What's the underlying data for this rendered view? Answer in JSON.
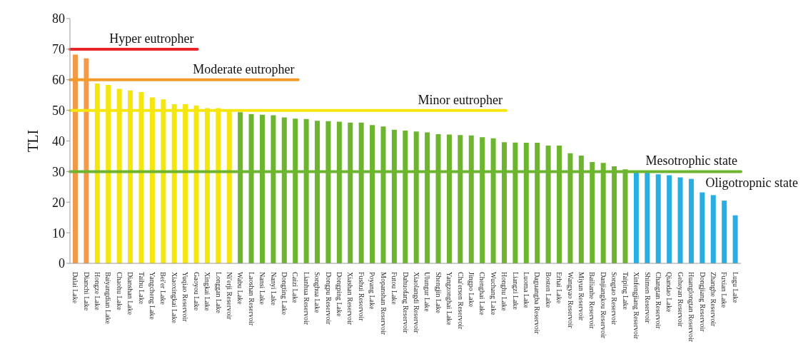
{
  "chart_data": {
    "type": "bar",
    "ylabel": "TLI",
    "categories": [
      "Dalai Lake",
      "Dianchi Lake",
      "Hongze Lake",
      "Baiyangdian Lake",
      "Chaohu Lake",
      "Dianshan Lake",
      "Taihu Lake",
      "Yangcheng Lake",
      "Bei'er Lake",
      "Xiaoxingkai Lake",
      "Yuqiao Reservoir",
      "Gaoyou Lake",
      "Xingkai Lake",
      "Longgan Lake",
      "Ni'erji Reservoir",
      "Wabu Lake",
      "Laoshan Reservoir",
      "Nansi Lake",
      "Nanyi Lake",
      "Dongting Lake",
      "Caizi Lake",
      "Lianhua Reservoir",
      "Songhua Lake",
      "Dongpu Reservoir",
      "Dongping Lake",
      "Xiashan Reservoir",
      "Fushui Reservoir",
      "Poyang Lake",
      "Mopanshan Reservoir",
      "Futou Lake",
      "Dahuofang Reservoir",
      "Xiaolangdi Reservoir",
      "Ulungur Lake",
      "Shengjin Lake",
      "Yangzonghai Lake",
      "Cha'ersen Reservoir",
      "Jingpo Lake",
      "Chenghai Lake",
      "Wuchang Lake",
      "Honghu Lake",
      "Liangzi Lake",
      "Luoma Lake",
      "Daguangba Reservoir",
      "Bosten Lake",
      "Erhai Lake",
      "Wangyao Reservoir",
      "Miyun Reservoir",
      "Bailianhe Reservoir",
      "Danjiangkou Reservoir",
      "Songtao Reservoir",
      "Taiping Lake",
      "Xinfengjiang Reservoir",
      "Shimen Reservoir",
      "Changtan Reservoir",
      "Qiandao Lake",
      "Geheyan Reservoir",
      "Huanglongtan Reservoir",
      "Dongjiang Reservoir",
      "Zhanghe Reservoir",
      "Fuxian Lake",
      "Lugu Lake"
    ],
    "values": [
      68.2,
      67,
      58.8,
      58.3,
      57,
      56.5,
      56,
      54.2,
      53.6,
      52,
      52,
      51.6,
      50.7,
      50.7,
      50.2,
      49.4,
      48.8,
      48.6,
      48.4,
      47.7,
      47.3,
      47.2,
      46.6,
      46.5,
      46.3,
      46,
      46,
      45.2,
      44.7,
      43.7,
      43.4,
      43.1,
      42.8,
      42.2,
      42.1,
      41.9,
      41.8,
      41.2,
      40.9,
      39.6,
      39.5,
      39.4,
      39.4,
      38.5,
      38.5,
      36,
      35.2,
      33.1,
      32.8,
      31.7,
      30.7,
      29.8,
      29.7,
      29.1,
      28.8,
      28.1,
      27.6,
      23.2,
      22.3,
      20.5,
      15.7
    ],
    "colors": [
      "#f39a4a",
      "#f39a4a",
      "#f5e60f",
      "#f5e60f",
      "#f5e60f",
      "#f5e60f",
      "#f5e60f",
      "#f5e60f",
      "#f5e60f",
      "#f5e60f",
      "#f5e60f",
      "#f5e60f",
      "#f5e60f",
      "#f5e60f",
      "#f5e60f",
      "#6db52f",
      "#6db52f",
      "#6db52f",
      "#6db52f",
      "#6db52f",
      "#6db52f",
      "#6db52f",
      "#6db52f",
      "#6db52f",
      "#6db52f",
      "#6db52f",
      "#6db52f",
      "#6db52f",
      "#6db52f",
      "#6db52f",
      "#6db52f",
      "#6db52f",
      "#6db52f",
      "#6db52f",
      "#6db52f",
      "#6db52f",
      "#6db52f",
      "#6db52f",
      "#6db52f",
      "#6db52f",
      "#6db52f",
      "#6db52f",
      "#6db52f",
      "#6db52f",
      "#6db52f",
      "#6db52f",
      "#6db52f",
      "#6db52f",
      "#6db52f",
      "#6db52f",
      "#6db52f",
      "#29aee3",
      "#29aee3",
      "#29aee3",
      "#29aee3",
      "#29aee3",
      "#29aee3",
      "#29aee3",
      "#29aee3",
      "#29aee3",
      "#29aee3"
    ],
    "ylim": [
      0,
      80
    ],
    "yticks": [
      0,
      10,
      20,
      30,
      40,
      50,
      60,
      70,
      80
    ],
    "grid": false,
    "ref_lines": [
      {
        "axis": "y",
        "value": 70,
        "label": "Hyper eutropher",
        "color": "#e8262a"
      },
      {
        "axis": "y",
        "value": 60,
        "label": "Moderate eutropher",
        "color": "#f39a2a"
      },
      {
        "axis": "y",
        "value": 50,
        "label": "Minor eutropher",
        "color": "#f5e60f"
      },
      {
        "axis": "y",
        "value": 30,
        "label": "Mesotrophic state",
        "color": "#6db52f"
      }
    ],
    "annotations": [
      "Oligotropnic state"
    ]
  }
}
